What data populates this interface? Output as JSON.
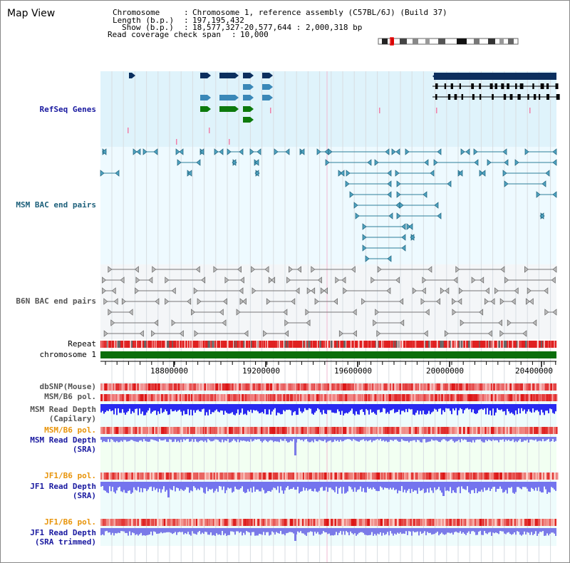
{
  "header": {
    "title": "Map View",
    "chromosome_label": "Chromosome",
    "chromosome_value": "Chromosome 1, reference assembly (C57BL/6J) (Build 37)",
    "length_label": "Length (b.p.)",
    "length_value": "197,195,432",
    "show_label": "Show (b.p.)",
    "show_value": "18,577,327-20,577,644 : 2,000,318 bp",
    "coverage_label": "Read coverage check span",
    "coverage_value": "10,000"
  },
  "tracks": {
    "refseq": "RefSeq Genes",
    "msm_bac": "MSM BAC end pairs",
    "b6n_bac": "B6N BAC end pairs",
    "repeat": "Repeat",
    "chromosome": "chromosome 1",
    "dbsnp": "dbSNP(Mouse)",
    "msm_b6_pol": "MSM/B6 pol.",
    "msm_depth_cap_1": "MSM Read Depth",
    "msm_depth_cap_2": "(Capilary)",
    "msm_b6_pol_2": "MSM/B6 pol.",
    "msm_depth_sra_1": "MSM Read Depth",
    "msm_depth_sra_2": "(SRA)",
    "jf1_b6_pol": "JF1/B6 pol.",
    "jf1_depth_sra_1": "JF1 Read Depth",
    "jf1_depth_sra_2": "(SRA)",
    "jf1_b6_pol_2": "JF1/B6 pol.",
    "jf1_depth_trim_1": "JF1 Read Depth",
    "jf1_depth_trim_2": "(SRA trimmed)"
  },
  "ruler": {
    "ticks": [
      "18800000",
      "19200000",
      "19600000",
      "20000000",
      "20400000"
    ]
  },
  "colors": {
    "refseq_bg": "#dff3fb",
    "msm_bg": "#eefaff",
    "b6n_bg": "#f4f6f8",
    "gene_dark": "#0b2f5e",
    "gene_mid": "#3a88b8",
    "gene_green": "#0d7a0d",
    "chrom_green": "#0b6e0b",
    "repeat_red": "#e02020",
    "depth_blue": "#3a3af0",
    "pol_red": "#f07070"
  }
}
